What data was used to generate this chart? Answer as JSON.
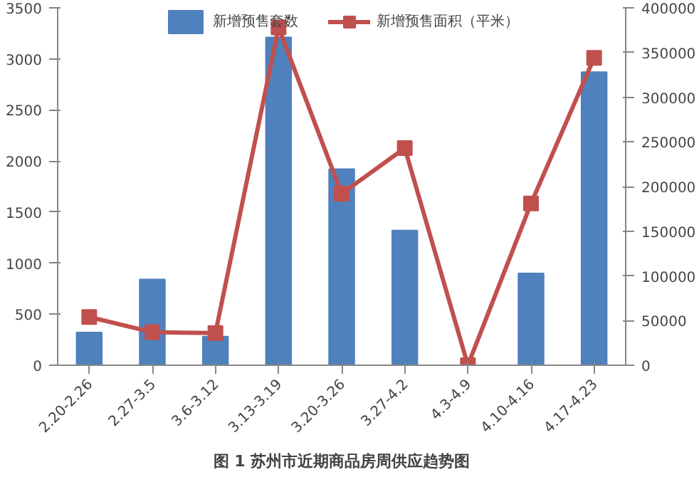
{
  "chart_data": {
    "type": "bar",
    "title": "图 1 苏州市近期商品房周供应趋势图",
    "categories": [
      "2.20-2.26",
      "2.27-3.5",
      "3.6-3.12",
      "3.13-3.19",
      "3.20-3.26",
      "3.27-4.2",
      "4.3-4.9",
      "4.10-4.16",
      "4.17-4.23"
    ],
    "series": [
      {
        "name": "新增预售套数",
        "color": "#4f81bd",
        "values": [
          320,
          840,
          280,
          3210,
          1920,
          1320,
          0,
          900,
          2870
        ]
      },
      {
        "name": "新增预售面积（平米）",
        "type": "line",
        "axis": "y2",
        "color": "#c0504d",
        "marker": "square",
        "values": [
          54000,
          37000,
          36000,
          378000,
          192000,
          243000,
          0,
          181000,
          344000
        ]
      }
    ],
    "ylim": [
      0,
      3500
    ],
    "yticks": [
      0,
      500,
      1000,
      1500,
      2000,
      2500,
      3000,
      3500
    ],
    "y2lim": [
      0,
      400000
    ],
    "y2ticks": [
      0,
      50000,
      100000,
      150000,
      200000,
      250000,
      300000,
      350000,
      400000
    ],
    "grid": false,
    "legend": "top"
  }
}
